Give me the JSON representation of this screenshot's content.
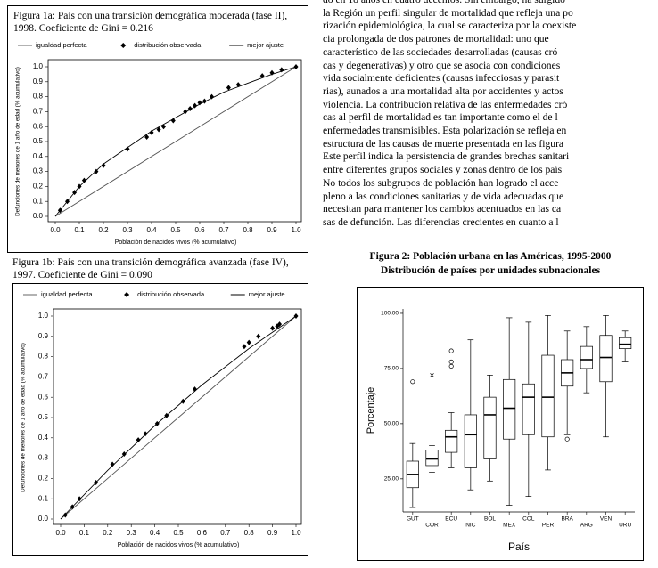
{
  "text": {
    "body_lines": [
      "do en 18 años en cuatro decenios. Sin embargo, ha surgido",
      "la Región un perfil singular de mortalidad que refleja una po",
      "rización epidemiológica, la cual se caracteriza por la coexiste",
      "cia prolongada de dos patrones de mortalidad: uno que",
      "característico de las sociedades desarrolladas (causas cró",
      "cas y degenerativas) y otro que se asocia con condiciones",
      "vida socialmente deficientes (causas infecciosas y parasit",
      "rias), aunados a una mortalidad alta por accidentes y actos",
      "violencia. La contribución relativa de las enfermedades cró",
      "cas al perfil de mortalidad es tan importante como el de l",
      "enfermedades transmisibles. Esta polarización se refleja en",
      "estructura de las causas de muerte presentada en las figura",
      "Este perfil indica la persistencia de grandes brechas sanitari",
      "entre diferentes grupos sociales y zonas dentro de los país",
      "No todos los subgrupos de población han logrado el acce",
      "pleno a las condiciones sanitarias y de vida adecuadas que",
      "necesitan para mantener los cambios acentuados en las ca",
      "sas de defunción. Las diferencias crecientes en cuanto a l"
    ]
  },
  "chart_data": [
    {
      "type": "lorenz",
      "title": "Figura 1a: País con una transición demográfica moderada (fase II), 1998.  Coeficiente de Gini = 0.216",
      "x_label": "Población de nacidos vivos (% acumulativo)",
      "y_label": "Defunciones de menores de 1 año de edad (% acumulativo)",
      "xlim": [
        0,
        1
      ],
      "ylim": [
        0,
        1
      ],
      "xticks": [
        {
          "value": 0,
          "label": "0.0"
        },
        0.1,
        0.2,
        0.3,
        0.4,
        0.5,
        0.6,
        0.7,
        0.8,
        0.9,
        {
          "value": 1,
          "label": "1.0"
        }
      ],
      "yticks": [
        {
          "value": 0,
          "label": "0.0"
        },
        0.1,
        0.2,
        0.3,
        0.4,
        0.5,
        0.6,
        0.7,
        0.8,
        0.9,
        {
          "value": 1,
          "label": "1.0"
        }
      ],
      "grid": false,
      "series": [
        {
          "name": "igualdad perfecta",
          "color": "#555555",
          "mode": "line",
          "x": [
            0,
            1
          ],
          "values": [
            0,
            1
          ]
        },
        {
          "name": "distribución observada",
          "color": "#000000",
          "mode": "markers",
          "x": [
            0.02,
            0.05,
            0.08,
            0.1,
            0.12,
            0.17,
            0.2,
            0.3,
            0.38,
            0.4,
            0.43,
            0.45,
            0.49,
            0.54,
            0.56,
            0.58,
            0.6,
            0.62,
            0.65,
            0.72,
            0.76,
            0.86,
            0.9,
            0.94,
            1.0
          ],
          "values": [
            0.04,
            0.1,
            0.16,
            0.2,
            0.24,
            0.3,
            0.34,
            0.45,
            0.53,
            0.56,
            0.58,
            0.6,
            0.64,
            0.7,
            0.72,
            0.74,
            0.76,
            0.77,
            0.8,
            0.86,
            0.88,
            0.94,
            0.96,
            0.98,
            1.0
          ]
        },
        {
          "name": "mejor ajuste",
          "color": "#000000",
          "mode": "line",
          "x": [
            0,
            0.1,
            0.2,
            0.3,
            0.4,
            0.5,
            0.6,
            0.7,
            0.8,
            0.9,
            1.0
          ],
          "values": [
            0,
            0.2,
            0.35,
            0.46,
            0.57,
            0.66,
            0.75,
            0.83,
            0.89,
            0.95,
            1.0
          ]
        }
      ]
    },
    {
      "type": "lorenz",
      "title": "Figura 1b: País con una transición demográfica avanzada (fase IV), 1997.  Coeficiente de Gini = 0.090",
      "x_label": "Población de nacidos vivos (% acumulativo)",
      "y_label": "Defunciones de menores de 1 año de edad (% acumulativo)",
      "xlim": [
        0,
        1
      ],
      "ylim": [
        0,
        1
      ],
      "xticks": [
        {
          "value": 0,
          "label": "0.0"
        },
        0.1,
        0.2,
        0.3,
        0.4,
        0.5,
        0.6,
        0.7,
        0.8,
        0.9,
        {
          "value": 1,
          "label": "1.0"
        }
      ],
      "yticks": [
        {
          "value": 0,
          "label": "0.0"
        },
        0.1,
        0.2,
        0.3,
        0.4,
        0.5,
        0.6,
        0.7,
        0.8,
        0.9,
        {
          "value": 1,
          "label": "1.0"
        }
      ],
      "grid": false,
      "series": [
        {
          "name": "igualdad perfecta",
          "color": "#555555",
          "mode": "line",
          "x": [
            0,
            1
          ],
          "values": [
            0,
            1
          ]
        },
        {
          "name": "distribución observada",
          "color": "#000000",
          "mode": "markers",
          "x": [
            0.02,
            0.05,
            0.08,
            0.15,
            0.22,
            0.27,
            0.33,
            0.36,
            0.41,
            0.45,
            0.52,
            0.57,
            0.78,
            0.8,
            0.84,
            0.9,
            0.92,
            0.93,
            1.0
          ],
          "values": [
            0.02,
            0.06,
            0.1,
            0.18,
            0.27,
            0.32,
            0.39,
            0.42,
            0.47,
            0.51,
            0.58,
            0.64,
            0.85,
            0.87,
            0.9,
            0.94,
            0.95,
            0.96,
            1.0
          ]
        },
        {
          "name": "mejor ajuste",
          "color": "#000000",
          "mode": "line",
          "x": [
            0,
            0.2,
            0.4,
            0.6,
            0.8,
            1.0
          ],
          "values": [
            0,
            0.24,
            0.46,
            0.66,
            0.84,
            1.0
          ]
        }
      ]
    },
    {
      "type": "box",
      "title": "Figura 2: Población urbana en las Américas, 1995-2000",
      "subtitle": "Distribución de países por unidades subnacionales",
      "x_label": "País",
      "y_label": "Porcentaje",
      "categories": [
        "GUT",
        "COR",
        "ECU",
        "NIC",
        "BOL",
        "MEX",
        "COL",
        "PER",
        "BRA",
        "ARG",
        "VEN",
        "URU"
      ],
      "min": [
        12,
        28,
        30,
        20,
        24,
        13,
        17,
        29,
        45,
        64,
        44,
        78
      ],
      "q1": [
        21,
        31,
        37,
        30,
        34,
        43,
        45,
        44,
        67,
        75,
        69,
        84
      ],
      "median": [
        27,
        34,
        44,
        45,
        54,
        57,
        62,
        62,
        73,
        79,
        80,
        86
      ],
      "q3": [
        33,
        38,
        47,
        54,
        62,
        70,
        68,
        81,
        79,
        85,
        90,
        89
      ],
      "max": [
        41,
        40,
        55,
        88,
        72,
        98,
        96,
        99,
        92,
        94,
        99,
        92
      ],
      "outliers": [
        [
          69
        ],
        [],
        [
          76,
          78,
          83
        ],
        [],
        [],
        [],
        [],
        [],
        [
          43
        ],
        [],
        [],
        []
      ],
      "extremes": [
        [],
        [
          72
        ],
        [],
        [],
        [],
        [],
        [],
        [],
        [],
        [],
        [],
        []
      ],
      "color": "#ffffff",
      "ylim": [
        10,
        102
      ],
      "yticks": [
        {
          "value": 25,
          "label": "25.00"
        },
        {
          "value": 50,
          "label": "50.00"
        },
        {
          "value": 75,
          "label": "75.00"
        },
        {
          "value": 100,
          "label": "100.00"
        }
      ]
    }
  ]
}
